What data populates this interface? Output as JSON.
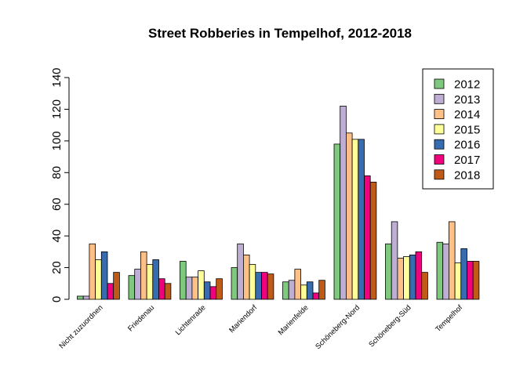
{
  "chart_data": {
    "type": "bar",
    "title": "Street Robberies in Tempelhof, 2012-2018",
    "xlabel": "",
    "ylabel": "",
    "ylim": [
      0,
      140
    ],
    "yticks": [
      "0",
      "20",
      "40",
      "60",
      "80",
      "100",
      "120",
      "140"
    ],
    "grid": false,
    "legend_position": "top-right",
    "categories": [
      "Nicht zuzuordnen",
      "Friedenau",
      "Lichtenrade",
      "Mariendorf",
      "Marienfelde",
      "Schöneberg-Nord",
      "Schöneberg-Süd",
      "Tempelhof"
    ],
    "series": [
      {
        "name": "2012",
        "color": "#7fc97f",
        "values": [
          2,
          15,
          24,
          20,
          11,
          98,
          35,
          36
        ]
      },
      {
        "name": "2013",
        "color": "#beaed4",
        "values": [
          2,
          19,
          14,
          35,
          12,
          122,
          49,
          35
        ]
      },
      {
        "name": "2014",
        "color": "#fdc086",
        "values": [
          35,
          30,
          14,
          28,
          19,
          105,
          26,
          49
        ]
      },
      {
        "name": "2015",
        "color": "#ffff99",
        "values": [
          25,
          22,
          18,
          22,
          9,
          101,
          27,
          23
        ]
      },
      {
        "name": "2016",
        "color": "#386cb0",
        "values": [
          30,
          25,
          11,
          17,
          11,
          101,
          28,
          32
        ]
      },
      {
        "name": "2017",
        "color": "#f0027f",
        "values": [
          10,
          13,
          8,
          17,
          4,
          78,
          30,
          24
        ]
      },
      {
        "name": "2018",
        "color": "#bf5b17",
        "values": [
          17,
          10,
          13,
          16,
          12,
          74,
          17,
          24
        ]
      }
    ]
  }
}
